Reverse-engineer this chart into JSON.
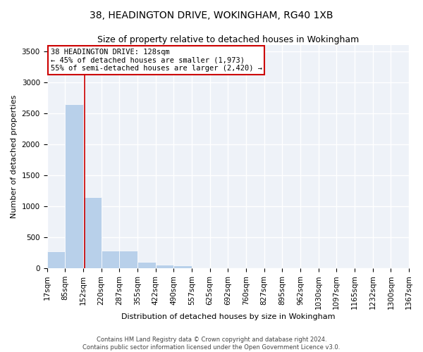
{
  "title": "38, HEADINGTON DRIVE, WOKINGHAM, RG40 1XB",
  "subtitle": "Size of property relative to detached houses in Wokingham",
  "xlabel": "Distribution of detached houses by size in Wokingham",
  "ylabel": "Number of detached properties",
  "bar_values": [
    275,
    2650,
    1150,
    285,
    285,
    100,
    60,
    40,
    0,
    0,
    0,
    0,
    0,
    0,
    0,
    0,
    0,
    0,
    0,
    0
  ],
  "bar_labels": [
    "17sqm",
    "85sqm",
    "152sqm",
    "220sqm",
    "287sqm",
    "355sqm",
    "422sqm",
    "490sqm",
    "557sqm",
    "625sqm",
    "692sqm",
    "760sqm",
    "827sqm",
    "895sqm",
    "962sqm",
    "1030sqm",
    "1097sqm",
    "1165sqm",
    "1232sqm",
    "1300sqm",
    "1367sqm"
  ],
  "bar_color": "#b8d0ea",
  "background_color": "#eef2f8",
  "grid_color": "#ffffff",
  "ylim": [
    0,
    3600
  ],
  "yticks": [
    0,
    500,
    1000,
    1500,
    2000,
    2500,
    3000,
    3500
  ],
  "vline_color": "#cc0000",
  "vline_position": 1.58,
  "annotation_text": "38 HEADINGTON DRIVE: 128sqm\n← 45% of detached houses are smaller (1,973)\n55% of semi-detached houses are larger (2,420) →",
  "annotation_box_color": "#cc0000",
  "footer_line1": "Contains HM Land Registry data © Crown copyright and database right 2024.",
  "footer_line2": "Contains public sector information licensed under the Open Government Licence v3.0.",
  "title_fontsize": 10,
  "subtitle_fontsize": 9,
  "xlabel_fontsize": 8,
  "ylabel_fontsize": 8,
  "annotation_fontsize": 7.5,
  "tick_fontsize": 7.5,
  "footer_fontsize": 6
}
